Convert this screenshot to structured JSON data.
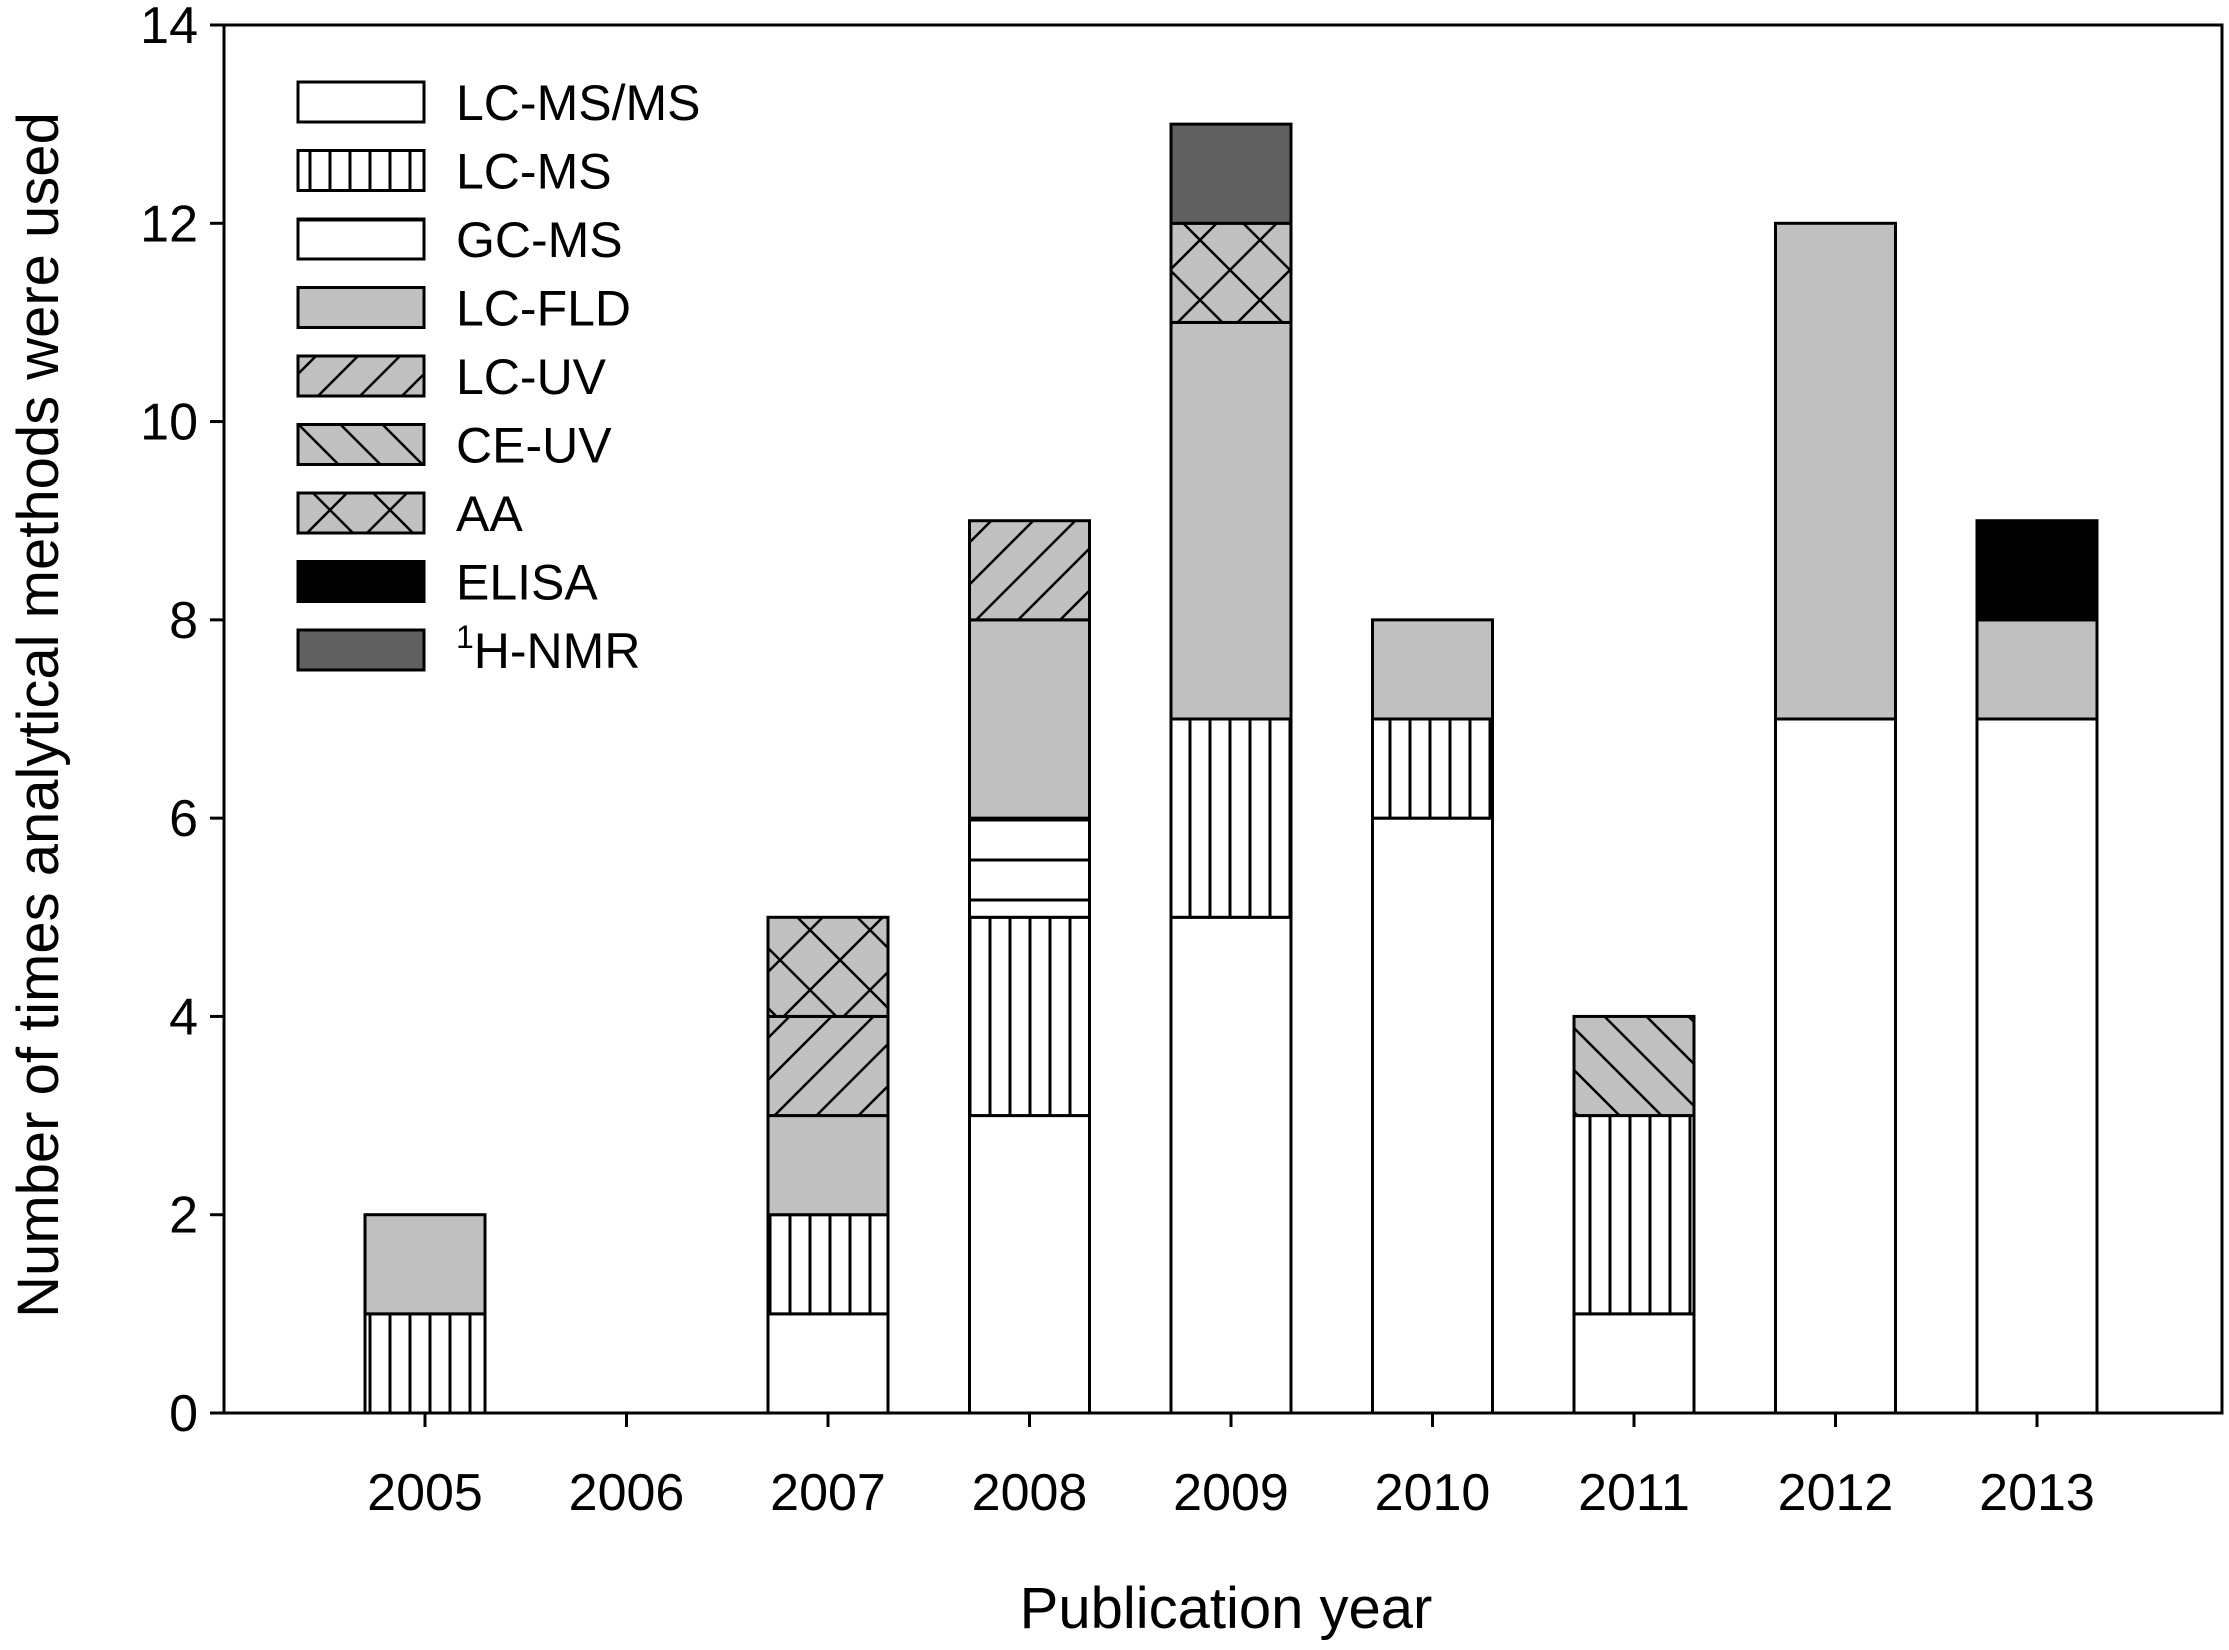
{
  "chart_data": {
    "type": "bar",
    "stacked": true,
    "xlabel": "Publication year",
    "ylabel": "Number of times analytical methods were used",
    "ylim": [
      0,
      14
    ],
    "yticks": [
      0,
      2,
      4,
      6,
      8,
      10,
      12,
      14
    ],
    "categories": [
      "2005",
      "2006",
      "2007",
      "2008",
      "2009",
      "2010",
      "2011",
      "2012",
      "2013"
    ],
    "legend_position": "top-left",
    "grid": false,
    "series": [
      {
        "name": "LC-MS/MS",
        "pattern": "white",
        "values": [
          0,
          0,
          1,
          3,
          5,
          6,
          1,
          7,
          7
        ]
      },
      {
        "name": "LC-MS",
        "pattern": "vertical-lines",
        "values": [
          1,
          0,
          1,
          2,
          2,
          1,
          2,
          0,
          0
        ]
      },
      {
        "name": "GC-MS",
        "pattern": "horizontal-lines",
        "values": [
          0,
          0,
          0,
          1,
          0,
          0,
          0,
          0,
          0
        ]
      },
      {
        "name": "LC-FLD",
        "pattern": "light-gray",
        "values": [
          1,
          0,
          1,
          2,
          4,
          1,
          0,
          5,
          1
        ]
      },
      {
        "name": "LC-UV",
        "pattern": "diagonal-forward",
        "values": [
          0,
          0,
          1,
          1,
          0,
          0,
          0,
          0,
          0
        ]
      },
      {
        "name": "CE-UV",
        "pattern": "diagonal-back",
        "values": [
          0,
          0,
          0,
          0,
          0,
          0,
          1,
          0,
          0
        ]
      },
      {
        "name": "AA",
        "pattern": "crosshatch",
        "values": [
          0,
          0,
          1,
          0,
          1,
          0,
          0,
          0,
          0
        ]
      },
      {
        "name": "ELISA",
        "pattern": "black",
        "values": [
          0,
          0,
          0,
          0,
          0,
          0,
          0,
          0,
          1
        ]
      },
      {
        "name": "H-NMR",
        "superscript": "1",
        "pattern": "dark-gray",
        "values": [
          0,
          0,
          0,
          0,
          1,
          0,
          0,
          0,
          0
        ]
      }
    ]
  },
  "colors": {
    "light_gray": "#c0c0c0",
    "dark_gray": "#606060",
    "black": "#000000",
    "white": "#ffffff",
    "hatch_bg": "#c0c0c0"
  }
}
